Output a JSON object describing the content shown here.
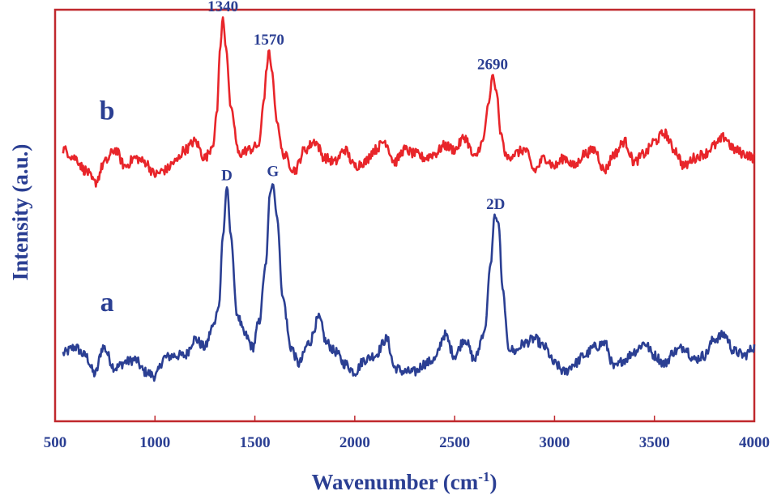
{
  "chart_data": {
    "type": "line",
    "xlabel": "Wavenumber (cm",
    "xlabel_sup": "-1",
    "xlabel_close": ")",
    "ylabel": "Intensity (a.u.)",
    "xlim": [
      500,
      4000
    ],
    "ylim": [
      0,
      100
    ],
    "x_ticks": [
      "500",
      "1000",
      "1500",
      "2000",
      "2500",
      "3000",
      "3500",
      "4000"
    ],
    "y_ticks_shown": false,
    "grid": false,
    "frame_color": "#c0282d",
    "axis_text_color": "#2b3f93",
    "series": [
      {
        "label": "a",
        "color": "#2b3f93",
        "peaks": [
          {
            "x": 1360,
            "label": "D",
            "height": 57
          },
          {
            "x": 1590,
            "label": "G",
            "height": 58
          },
          {
            "x": 2705,
            "label": "2D",
            "height": 50
          }
        ],
        "points": [
          [
            540,
            16.5
          ],
          [
            600,
            18
          ],
          [
            650,
            16
          ],
          [
            700,
            11.5
          ],
          [
            740,
            18
          ],
          [
            800,
            13
          ],
          [
            860,
            14.5
          ],
          [
            900,
            15
          ],
          [
            950,
            12
          ],
          [
            1000,
            11
          ],
          [
            1050,
            15.5
          ],
          [
            1100,
            16
          ],
          [
            1150,
            16
          ],
          [
            1200,
            20
          ],
          [
            1250,
            18
          ],
          [
            1290,
            23
          ],
          [
            1320,
            28
          ],
          [
            1340,
            45
          ],
          [
            1360,
            57
          ],
          [
            1380,
            45
          ],
          [
            1410,
            26
          ],
          [
            1450,
            21
          ],
          [
            1490,
            18
          ],
          [
            1520,
            24
          ],
          [
            1555,
            38
          ],
          [
            1575,
            55
          ],
          [
            1590,
            58
          ],
          [
            1610,
            50
          ],
          [
            1640,
            30
          ],
          [
            1680,
            18
          ],
          [
            1720,
            14
          ],
          [
            1770,
            19
          ],
          [
            1820,
            25
          ],
          [
            1860,
            19
          ],
          [
            1900,
            17
          ],
          [
            1950,
            14
          ],
          [
            2000,
            12
          ],
          [
            2050,
            15
          ],
          [
            2100,
            16
          ],
          [
            2160,
            20
          ],
          [
            2200,
            13
          ],
          [
            2250,
            12
          ],
          [
            2300,
            12
          ],
          [
            2350,
            14
          ],
          [
            2400,
            15
          ],
          [
            2450,
            21
          ],
          [
            2500,
            16
          ],
          [
            2550,
            20
          ],
          [
            2600,
            15
          ],
          [
            2650,
            22
          ],
          [
            2680,
            38
          ],
          [
            2700,
            50
          ],
          [
            2720,
            48
          ],
          [
            2740,
            32
          ],
          [
            2770,
            18
          ],
          [
            2800,
            17
          ],
          [
            2850,
            19
          ],
          [
            2900,
            20
          ],
          [
            2950,
            18
          ],
          [
            3000,
            14
          ],
          [
            3050,
            12
          ],
          [
            3100,
            14
          ],
          [
            3150,
            16
          ],
          [
            3200,
            18
          ],
          [
            3250,
            19
          ],
          [
            3300,
            13
          ],
          [
            3350,
            15
          ],
          [
            3400,
            17
          ],
          [
            3450,
            19
          ],
          [
            3500,
            16
          ],
          [
            3550,
            14
          ],
          [
            3600,
            17
          ],
          [
            3650,
            18
          ],
          [
            3700,
            15
          ],
          [
            3750,
            16
          ],
          [
            3800,
            20
          ],
          [
            3850,
            21
          ],
          [
            3900,
            17
          ],
          [
            3950,
            16
          ],
          [
            4000,
            18
          ]
        ]
      },
      {
        "label": "b",
        "color": "#e8252a",
        "peaks": [
          {
            "x": 1340,
            "label": "1340",
            "height": 98
          },
          {
            "x": 1570,
            "label": "1570",
            "height": 90
          },
          {
            "x": 2690,
            "label": "2690",
            "height": 84
          }
        ],
        "points": [
          [
            540,
            66
          ],
          [
            600,
            64
          ],
          [
            650,
            61
          ],
          [
            700,
            58
          ],
          [
            750,
            63
          ],
          [
            800,
            66
          ],
          [
            850,
            62
          ],
          [
            900,
            64
          ],
          [
            950,
            63
          ],
          [
            1000,
            60
          ],
          [
            1050,
            61
          ],
          [
            1100,
            63
          ],
          [
            1150,
            66
          ],
          [
            1200,
            68
          ],
          [
            1250,
            64
          ],
          [
            1290,
            67
          ],
          [
            1310,
            75
          ],
          [
            1325,
            90
          ],
          [
            1340,
            98
          ],
          [
            1355,
            91
          ],
          [
            1380,
            76
          ],
          [
            1420,
            65
          ],
          [
            1470,
            66
          ],
          [
            1520,
            67
          ],
          [
            1545,
            78
          ],
          [
            1560,
            86
          ],
          [
            1570,
            90
          ],
          [
            1585,
            85
          ],
          [
            1610,
            73
          ],
          [
            1640,
            65
          ],
          [
            1700,
            61
          ],
          [
            1750,
            66
          ],
          [
            1800,
            68
          ],
          [
            1850,
            64
          ],
          [
            1900,
            63
          ],
          [
            1950,
            66
          ],
          [
            2000,
            62
          ],
          [
            2050,
            63
          ],
          [
            2100,
            66
          ],
          [
            2150,
            68
          ],
          [
            2200,
            63
          ],
          [
            2250,
            66
          ],
          [
            2300,
            65
          ],
          [
            2350,
            64
          ],
          [
            2400,
            65
          ],
          [
            2450,
            67
          ],
          [
            2500,
            66
          ],
          [
            2550,
            69
          ],
          [
            2600,
            64
          ],
          [
            2640,
            68
          ],
          [
            2670,
            77
          ],
          [
            2690,
            84
          ],
          [
            2710,
            80
          ],
          [
            2730,
            70
          ],
          [
            2760,
            64
          ],
          [
            2800,
            65
          ],
          [
            2850,
            66
          ],
          [
            2900,
            61
          ],
          [
            2950,
            64
          ],
          [
            3000,
            62
          ],
          [
            3050,
            64
          ],
          [
            3100,
            62
          ],
          [
            3150,
            65
          ],
          [
            3200,
            66
          ],
          [
            3250,
            61
          ],
          [
            3300,
            65
          ],
          [
            3350,
            68
          ],
          [
            3400,
            63
          ],
          [
            3450,
            65
          ],
          [
            3500,
            68
          ],
          [
            3550,
            70
          ],
          [
            3600,
            66
          ],
          [
            3650,
            62
          ],
          [
            3700,
            64
          ],
          [
            3750,
            65
          ],
          [
            3800,
            67
          ],
          [
            3850,
            69
          ],
          [
            3900,
            66
          ],
          [
            3950,
            65
          ],
          [
            4000,
            64
          ]
        ]
      }
    ]
  }
}
